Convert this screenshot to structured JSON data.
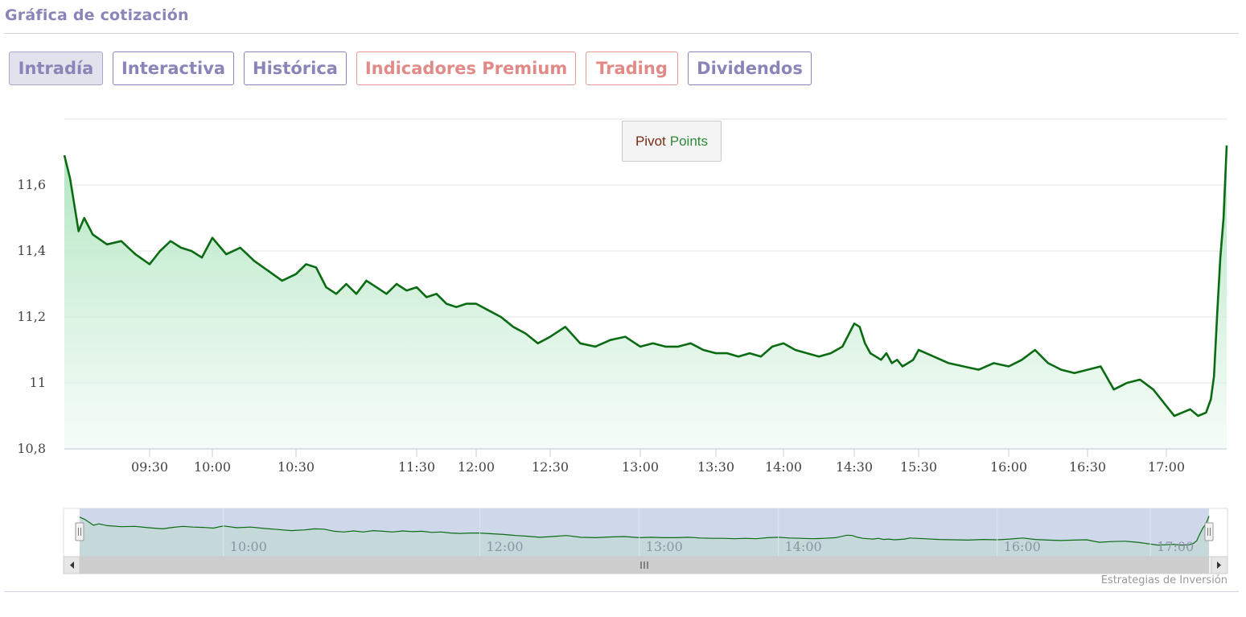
{
  "header": {
    "title": "Gráfica de cotización"
  },
  "tabs": [
    {
      "label": "Intradía",
      "active": true,
      "premium": false
    },
    {
      "label": "Interactiva",
      "active": false,
      "premium": false
    },
    {
      "label": "Histórica",
      "active": false,
      "premium": false
    },
    {
      "label": "Indicadores Premium",
      "active": false,
      "premium": true
    },
    {
      "label": "Trading",
      "active": false,
      "premium": true
    },
    {
      "label": "Dividendos",
      "active": false,
      "premium": false
    }
  ],
  "pivot": {
    "word1": "Pivot",
    "word2": "Points"
  },
  "credit": "Estrategias de Inversión",
  "colors": {
    "line": "#0a6b12",
    "accent": "#8a85b8",
    "premium": "#e08b87",
    "navigator_fill": "#ccd6ea"
  },
  "chart_data": {
    "type": "area",
    "title": "",
    "xlabel": "",
    "ylabel": "",
    "ylim": [
      10.8,
      11.8
    ],
    "grid": true,
    "y_ticks": [
      {
        "value": 10.8,
        "label": "10,8"
      },
      {
        "value": 11.0,
        "label": "11"
      },
      {
        "value": 11.2,
        "label": "11,2"
      },
      {
        "value": 11.4,
        "label": "11,4"
      },
      {
        "value": 11.6,
        "label": "11,6"
      }
    ],
    "x_ticks": [
      "09:30",
      "10:00",
      "10:30",
      "11:30",
      "12:00",
      "12:30",
      "13:00",
      "13:30",
      "14:00",
      "14:30",
      "15:30",
      "16:00",
      "16:30",
      "17:00"
    ],
    "navigator_ticks": [
      "10:00",
      "12:00",
      "13:00",
      "14:00",
      "16:00",
      "17:00"
    ],
    "series": [
      {
        "points": [
          [
            "09:00",
            11.69
          ],
          [
            "09:02",
            11.62
          ],
          [
            "09:05",
            11.46
          ],
          [
            "09:07",
            11.5
          ],
          [
            "09:10",
            11.45
          ],
          [
            "09:15",
            11.42
          ],
          [
            "09:20",
            11.43
          ],
          [
            "09:25",
            11.39
          ],
          [
            "09:30",
            11.36
          ],
          [
            "09:35",
            11.4
          ],
          [
            "09:40",
            11.43
          ],
          [
            "09:45",
            11.41
          ],
          [
            "09:50",
            11.4
          ],
          [
            "09:55",
            11.38
          ],
          [
            "10:00",
            11.44
          ],
          [
            "10:05",
            11.39
          ],
          [
            "10:10",
            11.41
          ],
          [
            "10:15",
            11.37
          ],
          [
            "10:20",
            11.34
          ],
          [
            "10:25",
            11.31
          ],
          [
            "10:30",
            11.33
          ],
          [
            "10:35",
            11.36
          ],
          [
            "10:40",
            11.35
          ],
          [
            "10:45",
            11.29
          ],
          [
            "10:50",
            11.27
          ],
          [
            "10:55",
            11.3
          ],
          [
            "11:00",
            11.27
          ],
          [
            "11:05",
            11.31
          ],
          [
            "11:10",
            11.29
          ],
          [
            "11:15",
            11.27
          ],
          [
            "11:20",
            11.3
          ],
          [
            "11:25",
            11.28
          ],
          [
            "11:30",
            11.29
          ],
          [
            "11:35",
            11.26
          ],
          [
            "11:40",
            11.27
          ],
          [
            "11:45",
            11.24
          ],
          [
            "11:50",
            11.23
          ],
          [
            "11:55",
            11.24
          ],
          [
            "12:00",
            11.24
          ],
          [
            "12:05",
            11.22
          ],
          [
            "12:10",
            11.2
          ],
          [
            "12:15",
            11.17
          ],
          [
            "12:20",
            11.15
          ],
          [
            "12:25",
            11.12
          ],
          [
            "12:30",
            11.14
          ],
          [
            "12:35",
            11.17
          ],
          [
            "12:40",
            11.12
          ],
          [
            "12:45",
            11.11
          ],
          [
            "12:50",
            11.13
          ],
          [
            "12:55",
            11.14
          ],
          [
            "13:00",
            11.11
          ],
          [
            "13:05",
            11.12
          ],
          [
            "13:10",
            11.11
          ],
          [
            "13:15",
            11.11
          ],
          [
            "13:20",
            11.12
          ],
          [
            "13:25",
            11.1
          ],
          [
            "13:30",
            11.09
          ],
          [
            "13:35",
            11.09
          ],
          [
            "13:40",
            11.08
          ],
          [
            "13:45",
            11.09
          ],
          [
            "13:50",
            11.08
          ],
          [
            "13:55",
            11.11
          ],
          [
            "14:00",
            11.12
          ],
          [
            "14:05",
            11.1
          ],
          [
            "14:10",
            11.09
          ],
          [
            "14:15",
            11.08
          ],
          [
            "14:20",
            11.09
          ],
          [
            "14:25",
            11.11
          ],
          [
            "14:30",
            11.18
          ],
          [
            "14:35",
            11.17
          ],
          [
            "14:40",
            11.12
          ],
          [
            "14:45",
            11.09
          ],
          [
            "14:50",
            11.08
          ],
          [
            "14:55",
            11.07
          ],
          [
            "15:00",
            11.09
          ],
          [
            "15:05",
            11.06
          ],
          [
            "15:10",
            11.07
          ],
          [
            "15:15",
            11.05
          ],
          [
            "15:20",
            11.06
          ],
          [
            "15:25",
            11.07
          ],
          [
            "15:30",
            11.1
          ],
          [
            "15:35",
            11.08
          ],
          [
            "15:40",
            11.06
          ],
          [
            "15:45",
            11.05
          ],
          [
            "15:50",
            11.04
          ],
          [
            "15:55",
            11.06
          ],
          [
            "16:00",
            11.05
          ],
          [
            "16:05",
            11.07
          ],
          [
            "16:10",
            11.1
          ],
          [
            "16:15",
            11.06
          ],
          [
            "16:20",
            11.04
          ],
          [
            "16:25",
            11.03
          ],
          [
            "16:30",
            11.04
          ],
          [
            "16:35",
            11.05
          ],
          [
            "16:40",
            10.98
          ],
          [
            "16:45",
            11.0
          ],
          [
            "16:50",
            11.01
          ],
          [
            "16:55",
            10.98
          ],
          [
            "17:00",
            10.93
          ],
          [
            "17:05",
            10.9
          ],
          [
            "17:10",
            10.91
          ],
          [
            "17:15",
            10.92
          ],
          [
            "17:20",
            10.9
          ],
          [
            "17:25",
            10.91
          ],
          [
            "17:28",
            10.95
          ],
          [
            "17:30",
            11.02
          ],
          [
            "17:32",
            11.21
          ],
          [
            "17:34",
            11.38
          ],
          [
            "17:36",
            11.5
          ],
          [
            "17:38",
            11.72
          ]
        ]
      }
    ]
  }
}
